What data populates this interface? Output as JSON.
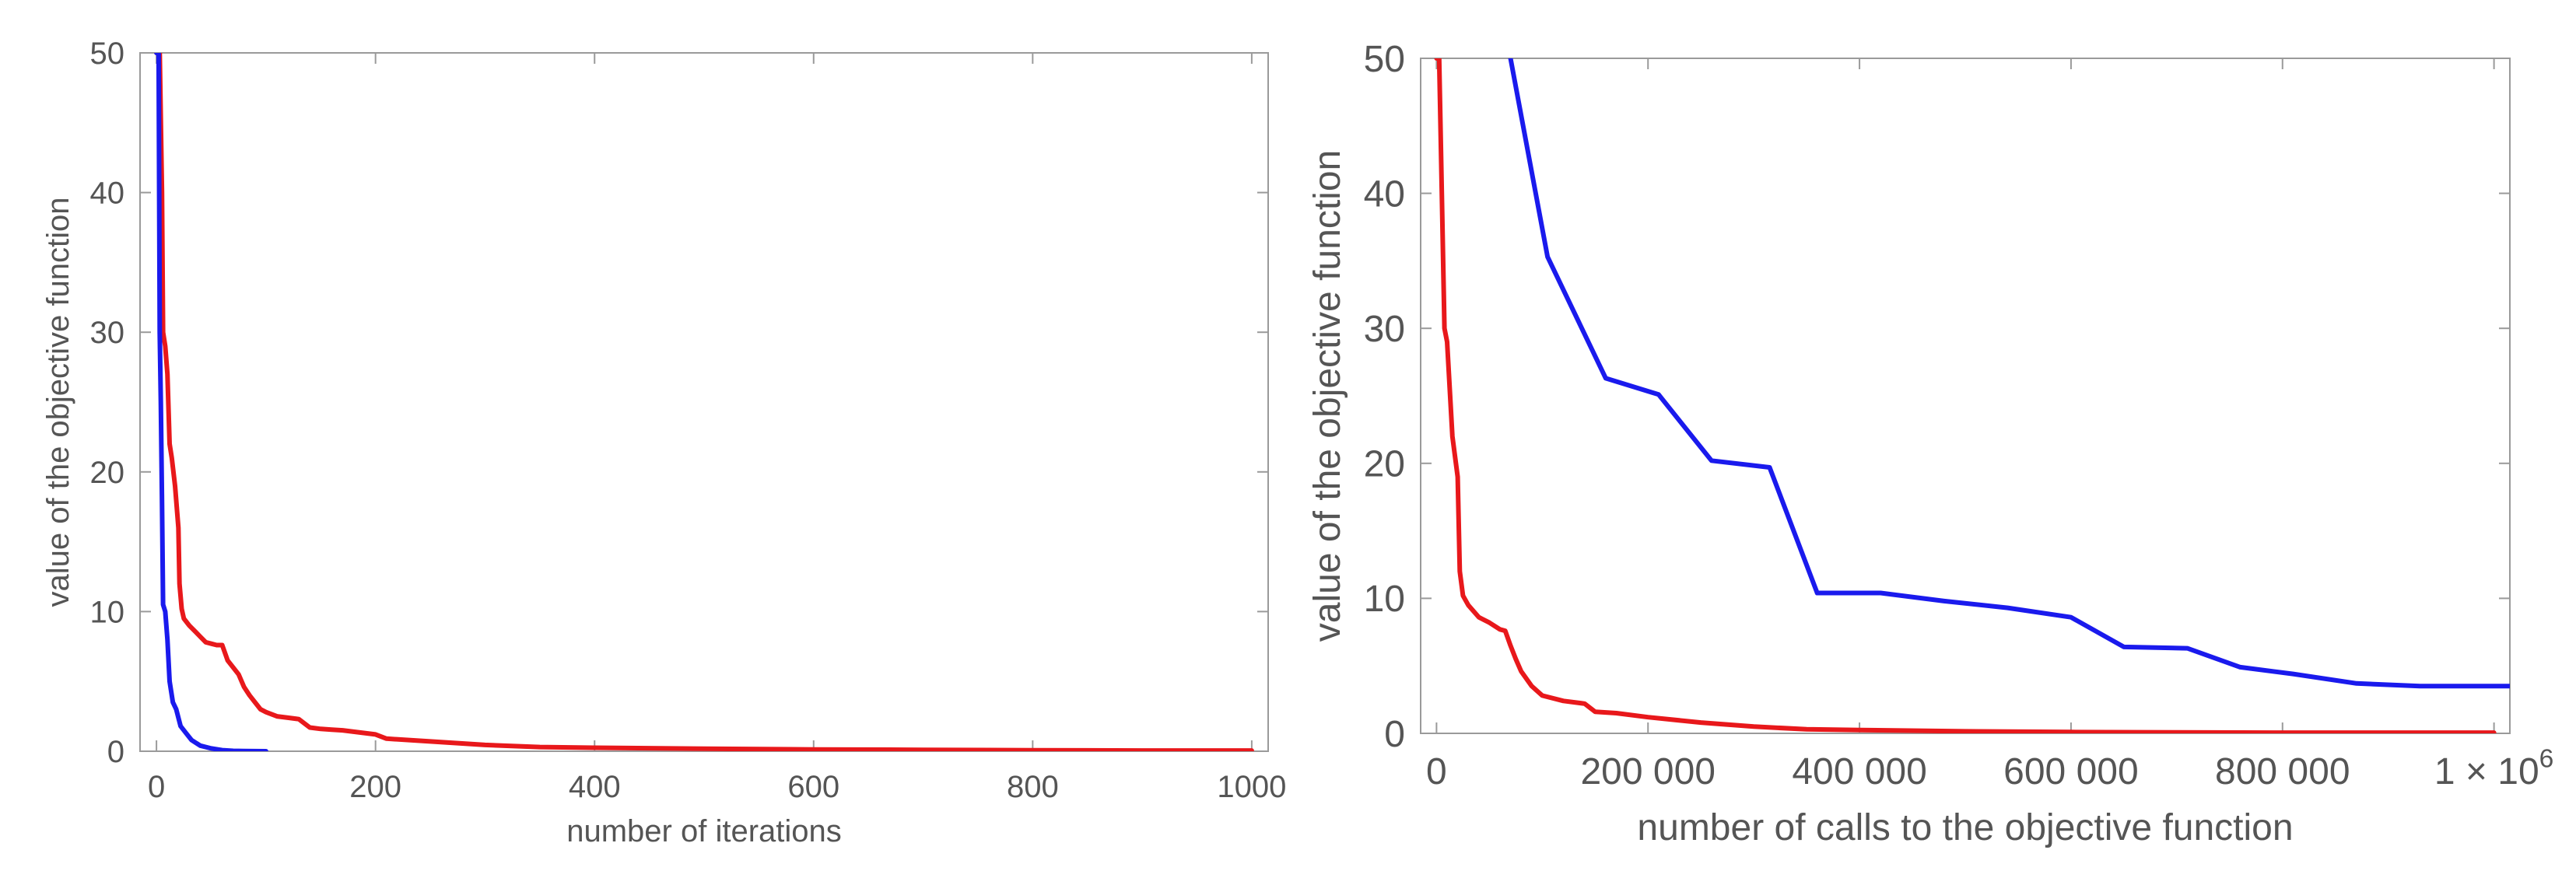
{
  "chart_data": [
    {
      "type": "line",
      "xlabel": "number of iterations",
      "ylabel": "value of the objective function",
      "xlim": [
        -15,
        1015
      ],
      "ylim": [
        0,
        50
      ],
      "x_ticks": [
        0,
        200,
        400,
        600,
        800,
        1000
      ],
      "x_tick_labels": [
        "0",
        "200",
        "400",
        "600",
        "800",
        "1000"
      ],
      "y_ticks": [
        0,
        10,
        20,
        30,
        40,
        50
      ],
      "y_tick_labels": [
        "0",
        "10",
        "20",
        "30",
        "40",
        "50"
      ],
      "grid": false,
      "series": [
        {
          "color": "#e8181b",
          "x": [
            0,
            3,
            5,
            6,
            8,
            10,
            12,
            14,
            17,
            20,
            21,
            23,
            25,
            30,
            35,
            40,
            45,
            50,
            55,
            60,
            65,
            70,
            75,
            80,
            85,
            90,
            95,
            100,
            110,
            120,
            130,
            140,
            150,
            160,
            170,
            180,
            200,
            210,
            250,
            300,
            350,
            400,
            500,
            600,
            700,
            800,
            900,
            1000
          ],
          "y": [
            50,
            50,
            40,
            30,
            29,
            27,
            22,
            21,
            19,
            16,
            12,
            10.2,
            9.5,
            9.0,
            8.6,
            8.2,
            7.8,
            7.7,
            7.6,
            7.6,
            6.5,
            6.0,
            5.5,
            4.6,
            4.0,
            3.5,
            3.0,
            2.8,
            2.5,
            2.4,
            2.3,
            1.7,
            1.6,
            1.55,
            1.5,
            1.4,
            1.2,
            0.9,
            0.7,
            0.45,
            0.3,
            0.25,
            0.18,
            0.13,
            0.1,
            0.07,
            0.05,
            0.05
          ]
        },
        {
          "color": "#1a1aed",
          "x": [
            0,
            2,
            3,
            4,
            5,
            6,
            8,
            10,
            12,
            15,
            18,
            22,
            27,
            32,
            40,
            50,
            60,
            70,
            80,
            100
          ],
          "y": [
            50,
            50,
            30,
            25,
            18,
            10.5,
            10,
            8,
            5,
            3.5,
            3.0,
            1.8,
            1.3,
            0.8,
            0.4,
            0.2,
            0.08,
            0.03,
            0.01,
            0
          ]
        }
      ]
    },
    {
      "type": "line",
      "xlabel": "number of calls to the objective function",
      "ylabel": "value of the objective function",
      "xlim": [
        -15000,
        1015000
      ],
      "ylim": [
        0,
        50
      ],
      "x_ticks": [
        0,
        200000,
        400000,
        600000,
        800000,
        1000000
      ],
      "x_tick_labels": [
        "0",
        "200 000",
        "400 000",
        "600 000",
        "800 000",
        "1 × 10"
      ],
      "x_tick_exponent": "6",
      "y_ticks": [
        0,
        10,
        20,
        30,
        40,
        50
      ],
      "y_tick_labels": [
        "0",
        "10",
        "20",
        "30",
        "40",
        "50"
      ],
      "grid": false,
      "series": [
        {
          "color": "#e8181b",
          "x": [
            0,
            2500,
            5000,
            7500,
            10000,
            15000,
            20000,
            22000,
            25000,
            30000,
            40000,
            50000,
            60000,
            65000,
            70000,
            75000,
            80000,
            90000,
            100000,
            120000,
            140000,
            150000,
            170000,
            200000,
            250000,
            300000,
            350000,
            400000,
            500000,
            600000,
            700000,
            800000,
            900000,
            1000000
          ],
          "y": [
            50,
            50,
            40,
            30,
            29,
            22,
            19,
            12,
            10.2,
            9.5,
            8.6,
            8.2,
            7.7,
            7.6,
            6.5,
            5.5,
            4.6,
            3.5,
            2.8,
            2.4,
            2.2,
            1.6,
            1.5,
            1.2,
            0.8,
            0.5,
            0.3,
            0.25,
            0.15,
            0.1,
            0.07,
            0.05,
            0.05,
            0.05
          ]
        },
        {
          "color": "#1a1aed",
          "x": [
            70000,
            105000,
            160000,
            210000,
            260000,
            315000,
            360000,
            420000,
            480000,
            540000,
            600000,
            650000,
            710000,
            760000,
            810000,
            870000,
            930000,
            1015000
          ],
          "y": [
            50,
            35.3,
            26.3,
            25.1,
            20.2,
            19.7,
            10.4,
            10.4,
            9.8,
            9.3,
            8.6,
            6.4,
            6.3,
            4.9,
            4.4,
            3.7,
            3.5,
            3.5
          ]
        }
      ]
    }
  ]
}
